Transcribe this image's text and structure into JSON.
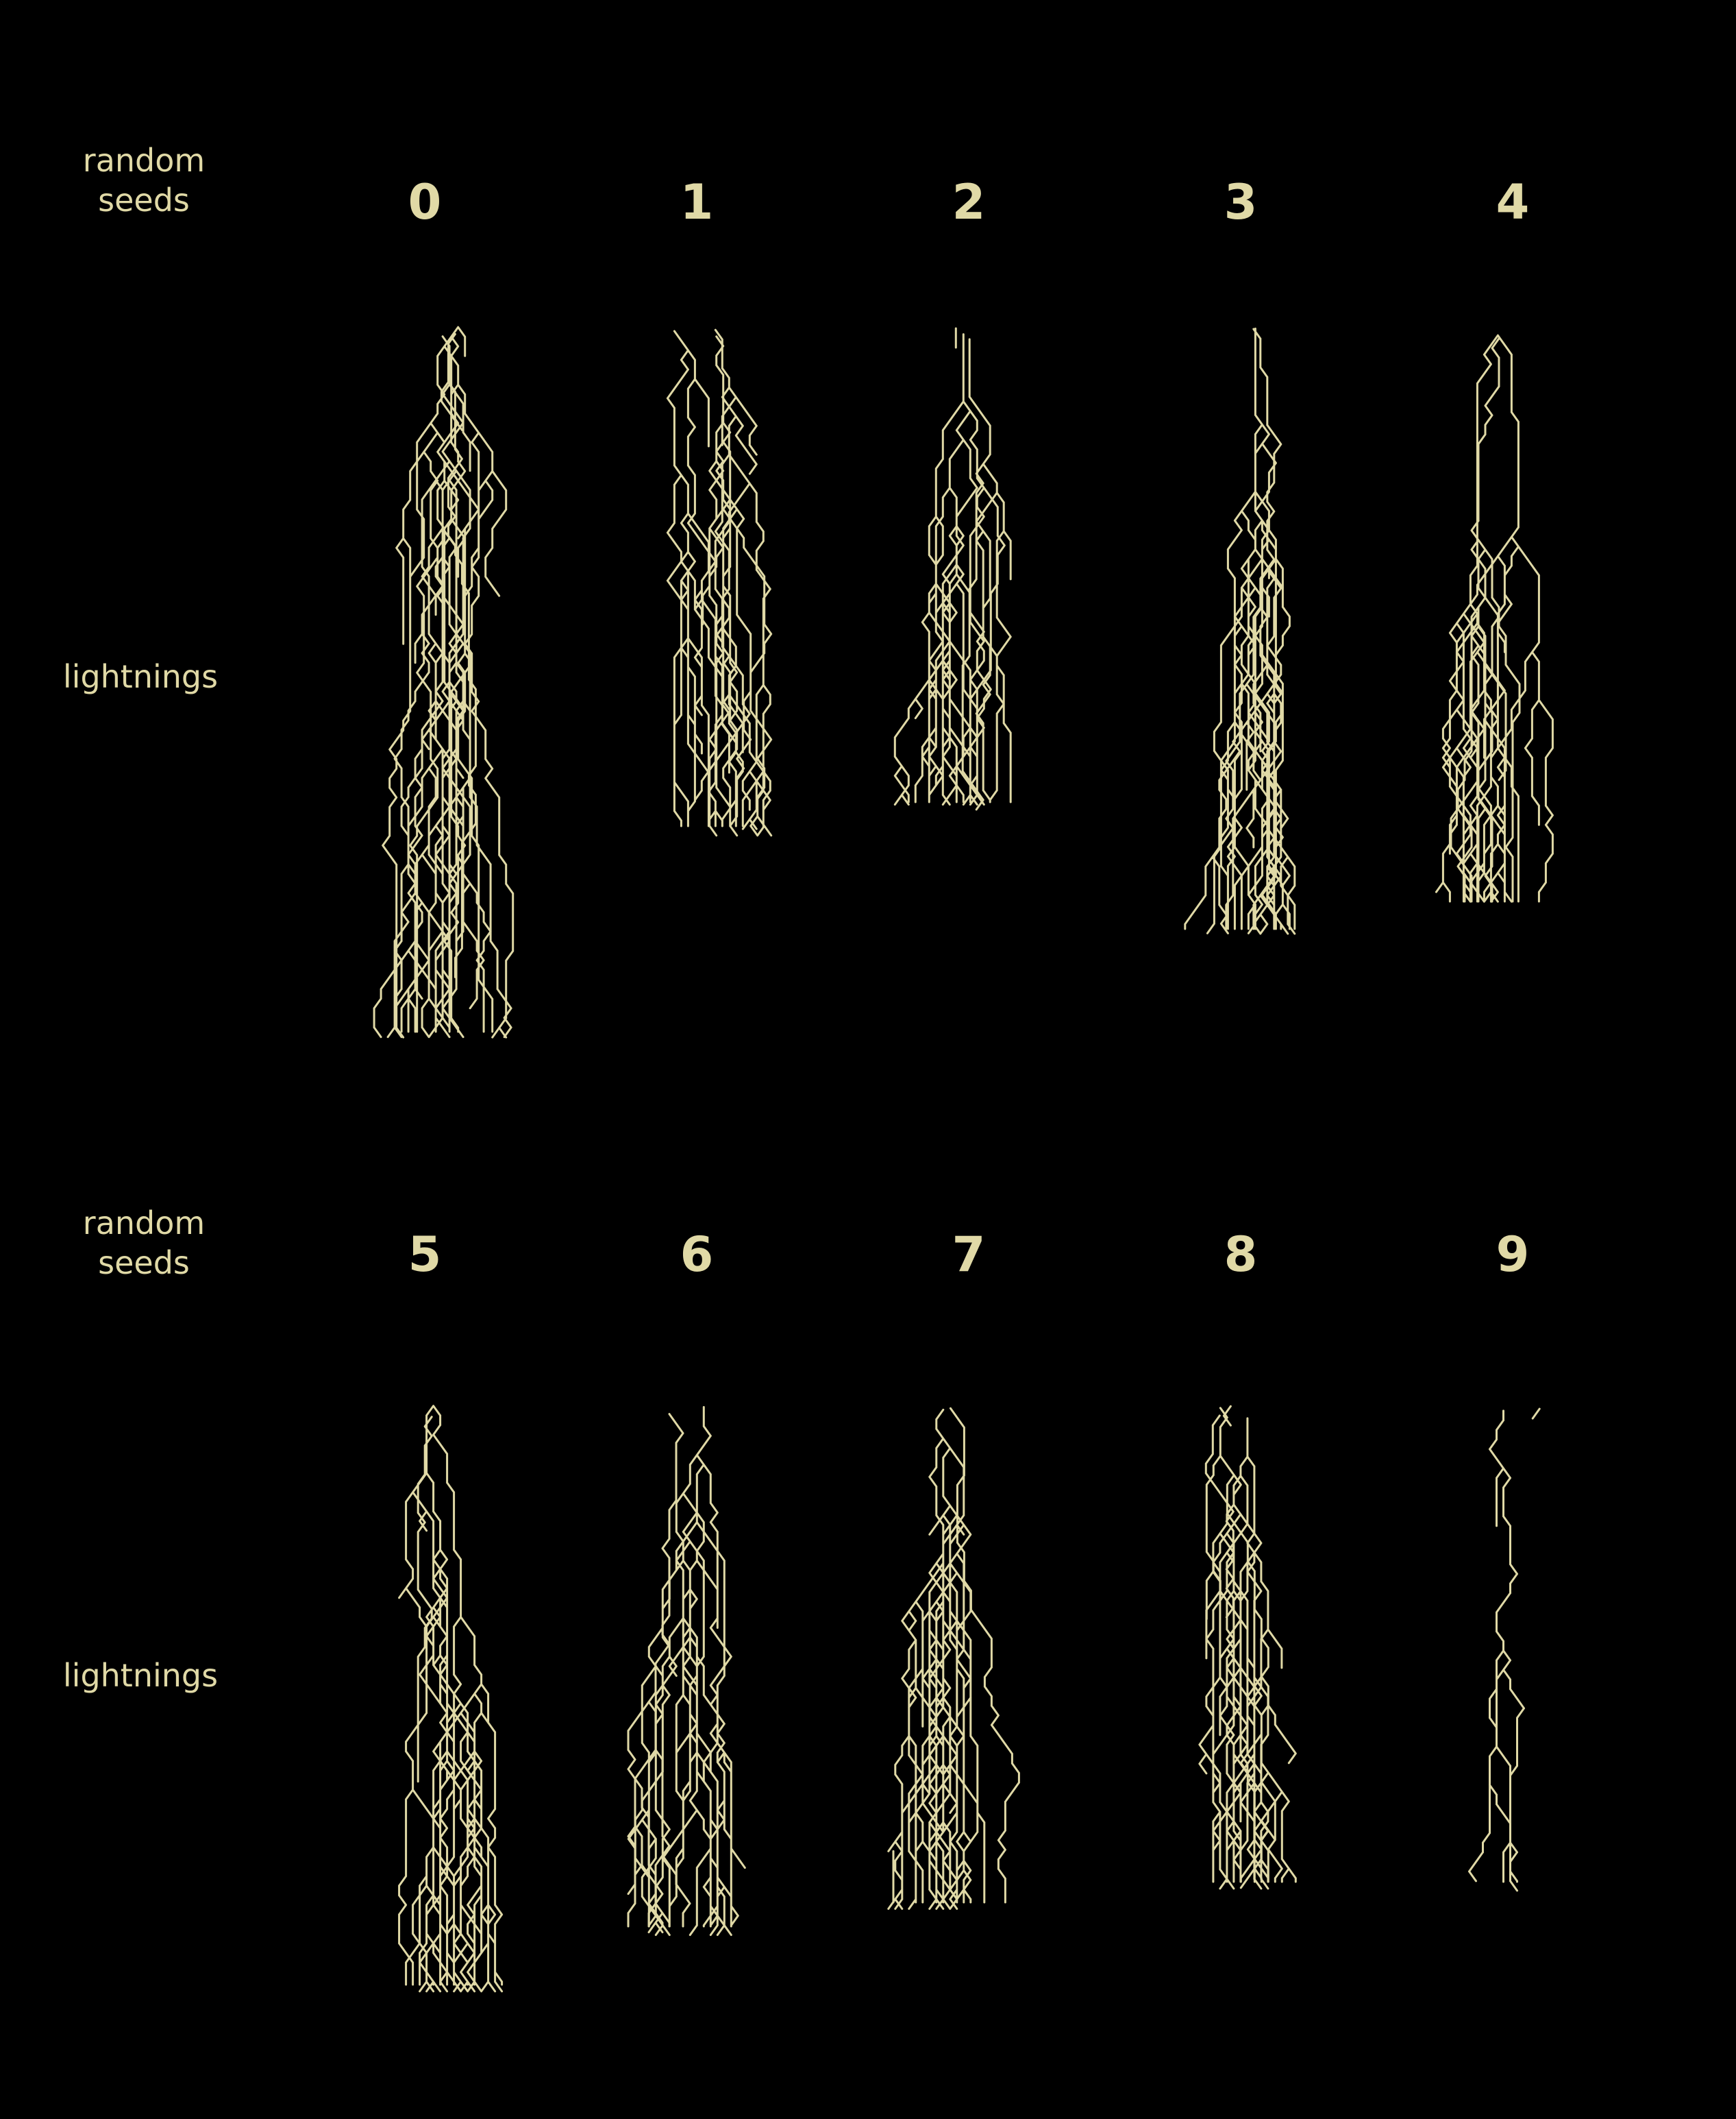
{
  "colors": {
    "background": "#000000",
    "foreground": "#e0d9a6"
  },
  "panels": [
    {
      "seed_row_label": "random\nseeds",
      "lightning_row_label": "lightnings",
      "seeds": [
        "0",
        "1",
        "2",
        "3",
        "4"
      ]
    },
    {
      "seed_row_label": "random\nseeds",
      "lightning_row_label": "lightnings",
      "seeds": [
        "5",
        "6",
        "7",
        "8",
        "9"
      ]
    }
  ]
}
